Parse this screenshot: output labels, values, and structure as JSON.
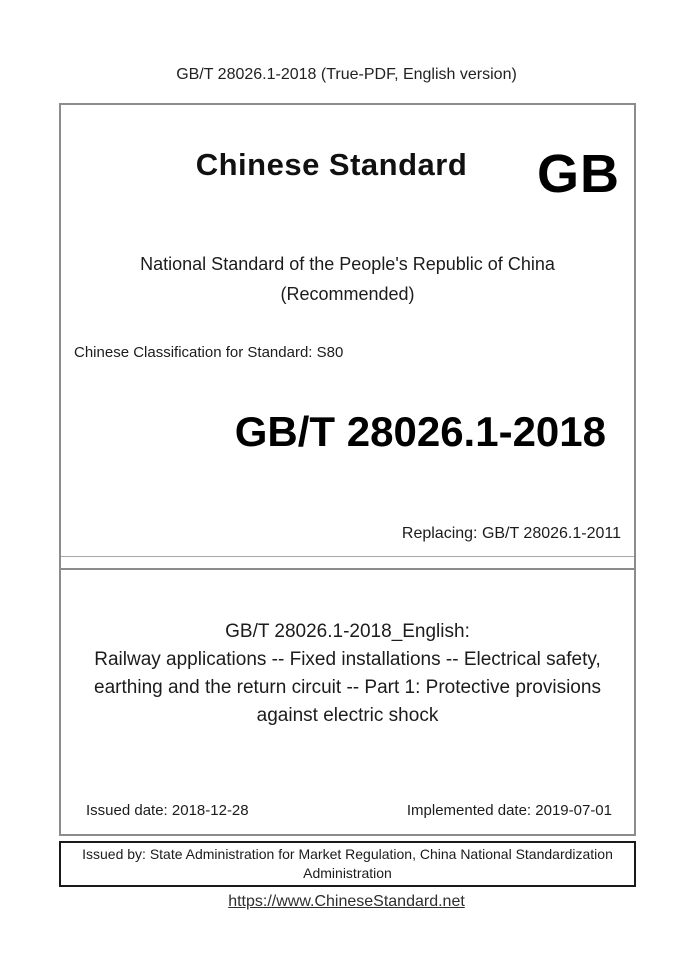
{
  "header": {
    "title": "GB/T 28026.1-2018 (True-PDF, English version)"
  },
  "cover": {
    "brand": "Chinese Standard",
    "logo": "GB",
    "national_line1": "National Standard of the People's Republic of China",
    "national_line2": "(Recommended)",
    "classification": "Chinese Classification for Standard: S80",
    "standard_number": "GB/T 28026.1-2018",
    "replacing": "Replacing: GB/T 28026.1-2011"
  },
  "details": {
    "english_title": "GB/T 28026.1-2018_English:",
    "description": "Railway applications -- Fixed installations -- Electrical safety, earthing and the return circuit -- Part 1: Protective provisions against electric shock",
    "issued_date": "Issued date: 2018-12-28",
    "implemented_date": "Implemented date: 2019-07-01"
  },
  "issuer": {
    "text": "Issued by: State Administration for Market Regulation, China National Standardization Administration"
  },
  "footer": {
    "link": "https://www.ChineseStandard.net"
  },
  "colors": {
    "frame_gray": "#8c8c8c",
    "frame_black": "#191919",
    "text": "#1c1c1c"
  }
}
